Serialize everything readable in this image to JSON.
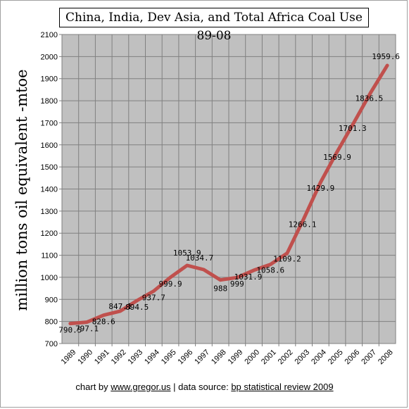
{
  "chart_data": {
    "type": "line",
    "title": "China, India, Dev Asia, and Total Africa Coal Use 89-08",
    "ylabel": "million tons oil equivalent -mtoe",
    "xlabel": "",
    "x": [
      "1989",
      "1990",
      "1991",
      "1992",
      "1993",
      "1994",
      "1995",
      "1996",
      "1997",
      "1998",
      "1999",
      "2000",
      "2001",
      "2002",
      "2003",
      "2004",
      "2005",
      "2006",
      "2007",
      "2008"
    ],
    "series": [
      {
        "values": [
          790.5,
          797.1,
          828.6,
          847.1,
          894.5,
          937.7,
          999.9,
          1053.9,
          1034.7,
          988,
          999,
          1031.9,
          1058.6,
          1109.2,
          1266.1,
          1429.9,
          1569.9,
          1701.3,
          1836.5,
          1959.6
        ],
        "labels": [
          "790.5",
          "797.1",
          "828.6",
          "847.1",
          "894.5",
          "937.7",
          "999.9",
          "1053.9",
          "1034.7",
          "988",
          "999",
          "1031.9",
          "1058.6",
          "1109.2",
          "1266.1",
          "1429.9",
          "1569.9",
          "1701.3",
          "1836.5",
          "1959.6"
        ],
        "color": "#c0504d"
      }
    ],
    "ylim": [
      700,
      2100
    ],
    "yticks": [
      "700",
      "800",
      "900",
      "1000",
      "1100",
      "1200",
      "1300",
      "1400",
      "1500",
      "1600",
      "1700",
      "1800",
      "1900",
      "2000",
      "2100"
    ],
    "grid": true,
    "plot_background": "#c0c0c0",
    "gridline_color": "#808080"
  },
  "footer": {
    "prefix": "chart by ",
    "site": "www.gregor.us",
    "separator": "  |  data source: ",
    "source": "bp statistical review 2009"
  }
}
